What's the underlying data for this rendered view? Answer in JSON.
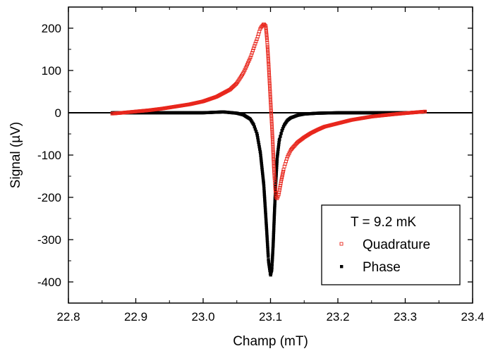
{
  "chart_data": {
    "type": "scatter",
    "title": "",
    "xlabel": "Champ (mT)",
    "ylabel": "Signal (µV)",
    "xlim": [
      22.8,
      23.4
    ],
    "ylim": [
      -450,
      250
    ],
    "xticks": [
      "22.8",
      "22.9",
      "23.0",
      "23.1",
      "23.2",
      "23.3",
      "23.4"
    ],
    "yticks": [
      "200",
      "100",
      "0",
      "-100",
      "-200",
      "-300",
      "-400"
    ],
    "grid": false,
    "zero_line": true,
    "legend": {
      "placement": "bottom-right",
      "title": "T = 9.2 mK",
      "entries": [
        "Quadrature",
        "Phase"
      ]
    },
    "series": [
      {
        "name": "Quadrature",
        "color": "#e8261c",
        "marker": "open-square",
        "x": [
          22.865,
          22.88,
          22.9,
          22.92,
          22.94,
          22.96,
          22.98,
          23.0,
          23.02,
          23.04,
          23.05,
          23.06,
          23.07,
          23.08,
          23.085,
          23.09,
          23.093,
          23.095,
          23.097,
          23.099,
          23.101,
          23.103,
          23.105,
          23.107,
          23.109,
          23.112,
          23.116,
          23.12,
          23.125,
          23.13,
          23.14,
          23.15,
          23.16,
          23.17,
          23.18,
          23.2,
          23.22,
          23.25,
          23.28,
          23.3,
          23.33
        ],
        "y": [
          -2,
          0,
          3,
          6,
          10,
          15,
          20,
          27,
          38,
          55,
          70,
          95,
          130,
          175,
          200,
          210,
          205,
          170,
          120,
          60,
          0,
          -60,
          -130,
          -180,
          -205,
          -195,
          -160,
          -130,
          -105,
          -88,
          -70,
          -58,
          -48,
          -40,
          -33,
          -25,
          -17,
          -9,
          -4,
          -1,
          3
        ]
      },
      {
        "name": "Phase",
        "color": "#000000",
        "marker": "filled-square",
        "x": [
          22.865,
          22.9,
          22.95,
          23.0,
          23.03,
          23.05,
          23.06,
          23.07,
          23.075,
          23.08,
          23.085,
          23.09,
          23.094,
          23.097,
          23.1,
          23.102,
          23.104,
          23.106,
          23.108,
          23.11,
          23.113,
          23.117,
          23.12,
          23.125,
          23.13,
          23.14,
          23.15,
          23.17,
          23.2,
          23.25,
          23.3,
          23.33
        ],
        "y": [
          0,
          0,
          0,
          0,
          2,
          -1,
          -5,
          -15,
          -28,
          -50,
          -95,
          -170,
          -270,
          -350,
          -385,
          -370,
          -310,
          -230,
          -160,
          -105,
          -65,
          -42,
          -30,
          -18,
          -12,
          -6,
          -3,
          -1,
          0,
          0,
          0,
          2
        ]
      }
    ]
  }
}
